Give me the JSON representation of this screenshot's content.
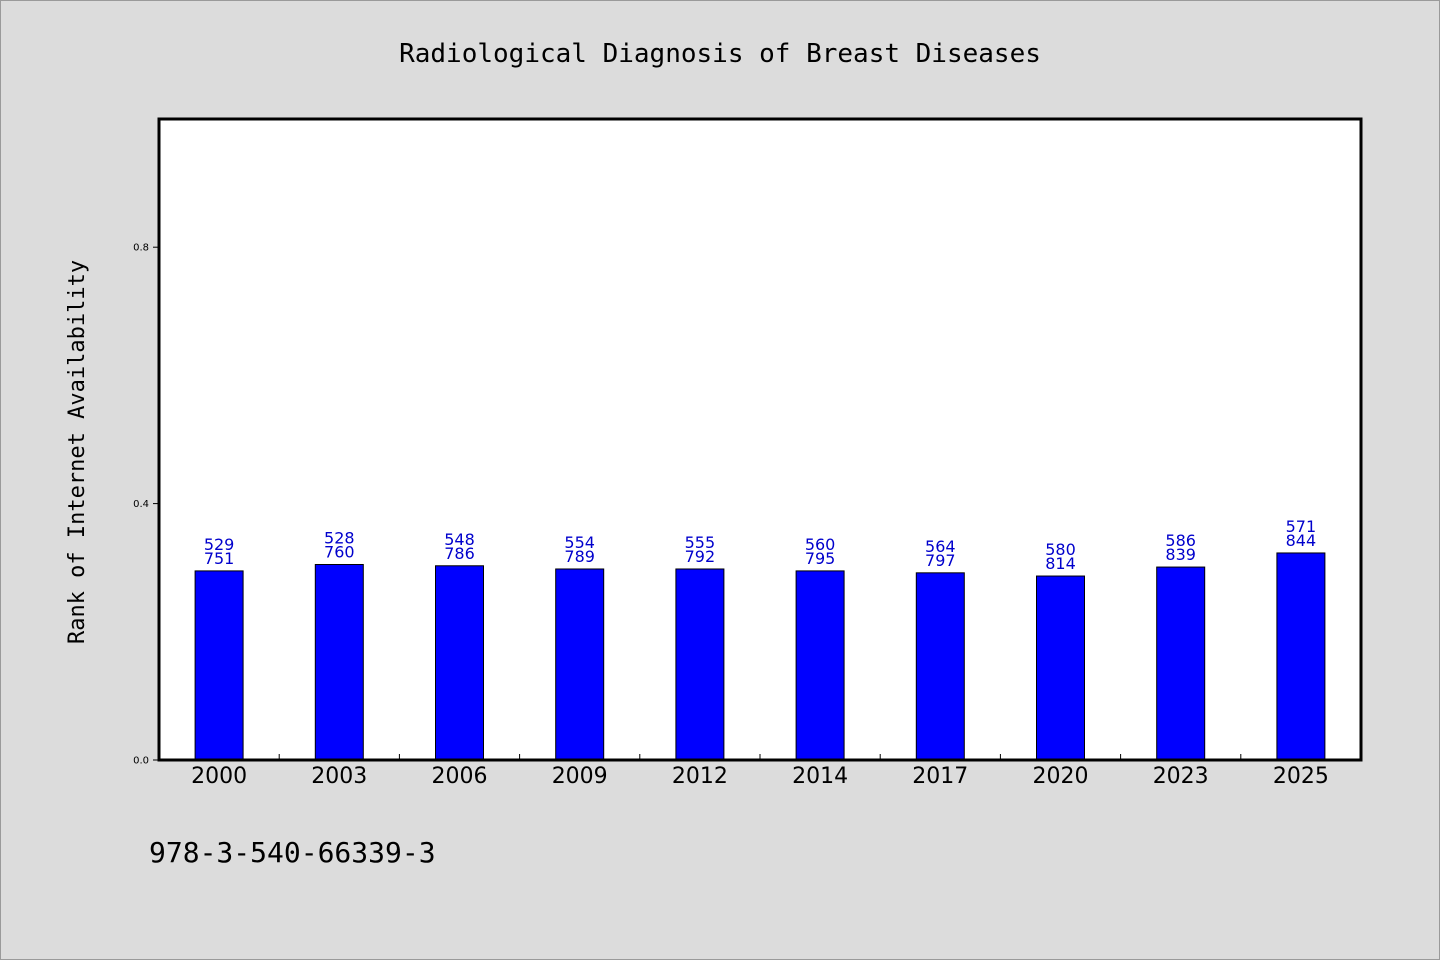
{
  "chart_data": {
    "type": "bar",
    "title": "Radiological Diagnosis of Breast Diseases",
    "xlabel": "",
    "ylabel": "Rank of Internet Availability",
    "ylim": [
      0,
      1.0
    ],
    "yticks": [
      "0.0",
      "0.4",
      "0.8"
    ],
    "ytick_values": [
      0.0,
      0.4,
      0.8
    ],
    "grid": false,
    "categories": [
      "2000",
      "2003",
      "2006",
      "2009",
      "2012",
      "2014",
      "2017",
      "2020",
      "2023",
      "2025"
    ],
    "values": [
      0.295,
      0.305,
      0.303,
      0.298,
      0.298,
      0.295,
      0.292,
      0.287,
      0.301,
      0.323
    ],
    "label_top": [
      "529",
      "528",
      "548",
      "554",
      "555",
      "560",
      "564",
      "580",
      "586",
      "571"
    ],
    "label_bottom": [
      "751",
      "760",
      "786",
      "789",
      "792",
      "795",
      "797",
      "814",
      "839",
      "844"
    ],
    "bar_color": "#0000ff",
    "label_color": "#0000cc"
  },
  "footer": {
    "isbn": "978-3-540-66339-3"
  }
}
